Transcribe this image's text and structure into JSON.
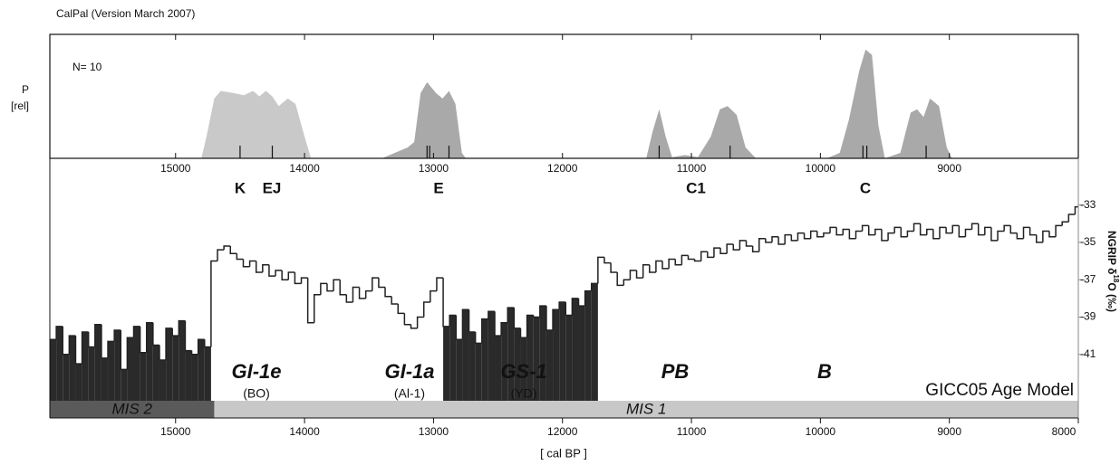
{
  "chart_data": [
    {
      "type": "area",
      "title": "CalPal (Version March 2007)",
      "n_label": "N= 10",
      "ylabel_lines": [
        "P",
        "[rel]"
      ],
      "xlim": [
        15975,
        8000
      ],
      "ylim": [
        0,
        1.14
      ],
      "xticks": [
        15000,
        14000,
        13000,
        12000,
        11000,
        10000,
        9000
      ],
      "sample_labels": [
        "K",
        "EJ",
        "E",
        "C1",
        "C"
      ],
      "sample_ticks": [
        14500,
        14250,
        13050,
        13030,
        12880,
        11250,
        10700,
        9670,
        9640,
        9180
      ],
      "series": [
        {
          "color": "#c9c9c9",
          "x": [
            14800,
            14760,
            14700,
            14650,
            14550,
            14470,
            14400,
            14350,
            14300,
            14250,
            14200,
            14130,
            14070,
            14000,
            13950
          ],
          "values": [
            0,
            0.2,
            0.55,
            0.62,
            0.6,
            0.58,
            0.62,
            0.57,
            0.62,
            0.57,
            0.48,
            0.55,
            0.5,
            0.2,
            0
          ]
        },
        {
          "color": "#a9a9a9",
          "x": [
            13400,
            13300,
            13200,
            13150,
            13100,
            13050,
            12980,
            12930,
            12880,
            12830,
            12780,
            12750,
            11350,
            11300,
            11250,
            11200,
            11150,
            11050,
            10950,
            10850,
            10780,
            10720,
            10650,
            10580,
            10500,
            9950,
            9850,
            9780,
            9700,
            9650,
            9600,
            9550,
            9500,
            9380,
            9300,
            9250,
            9200,
            9150,
            9080,
            9020,
            8980
          ],
          "values": [
            0,
            0.05,
            0.1,
            0.15,
            0.6,
            0.7,
            0.6,
            0.55,
            0.62,
            0.5,
            0.05,
            0,
            0,
            0.25,
            0.45,
            0.2,
            0.01,
            0.03,
            0.01,
            0.2,
            0.45,
            0.48,
            0.4,
            0.1,
            0,
            0,
            0.05,
            0.35,
            0.8,
            1.0,
            0.95,
            0.3,
            0,
            0.05,
            0.42,
            0.45,
            0.38,
            0.55,
            0.48,
            0.1,
            0
          ]
        }
      ]
    },
    {
      "type": "step",
      "xlabel": "[ cal BP ]",
      "y2label": {
        "pre": "NGRIP δ",
        "sup": "18",
        "post": "O (‰)"
      },
      "model_label": "GICC05 Age Model",
      "xlim": [
        15975,
        8000
      ],
      "xticks": [
        15000,
        14000,
        13000,
        12000,
        11000,
        10000,
        9000,
        8000
      ],
      "y2lim": [
        -44.4,
        -30.5
      ],
      "y2ticks": [
        -33,
        -35,
        -37,
        -39,
        -41
      ],
      "stadials": [
        [
          15975,
          14700
        ],
        [
          12900,
          11700
        ]
      ],
      "periods": [
        {
          "name": "GI-1e",
          "sub": "(BO)"
        },
        {
          "name": "GI-1a",
          "sub": "(Al-1)"
        },
        {
          "name": "GS-1",
          "sub": "(YD)"
        },
        {
          "name": "PB"
        },
        {
          "name": "B"
        }
      ],
      "mis": [
        {
          "name": "MIS 2",
          "range": [
            15975,
            14700
          ],
          "color": "#5a5a5a"
        },
        {
          "name": "MIS 1",
          "range": [
            14700,
            8000
          ],
          "color": "#c8c8c8"
        }
      ],
      "series": [
        {
          "axis": "y2",
          "color": "#222222",
          "fill": "#2a2a2a",
          "x": [
            15950,
            15900,
            15850,
            15800,
            15750,
            15700,
            15650,
            15600,
            15550,
            15500,
            15450,
            15400,
            15350,
            15300,
            15250,
            15200,
            15150,
            15100,
            15050,
            15000,
            14950,
            14900,
            14850,
            14800,
            14750,
            14700,
            14650,
            14600,
            14550,
            14500,
            14450,
            14400,
            14350,
            14300,
            14250,
            14200,
            14150,
            14100,
            14050,
            14000,
            13950,
            13900,
            13850,
            13800,
            13750,
            13700,
            13650,
            13600,
            13550,
            13500,
            13450,
            13400,
            13350,
            13300,
            13250,
            13200,
            13150,
            13100,
            13050,
            13000,
            12950,
            12900,
            12850,
            12800,
            12750,
            12700,
            12650,
            12600,
            12550,
            12500,
            12450,
            12400,
            12350,
            12300,
            12250,
            12200,
            12150,
            12100,
            12050,
            12000,
            11950,
            11900,
            11850,
            11800,
            11750,
            11700,
            11650,
            11600,
            11550,
            11500,
            11450,
            11400,
            11350,
            11300,
            11250,
            11200,
            11150,
            11100,
            11050,
            11000,
            10950,
            10900,
            10850,
            10800,
            10750,
            10700,
            10650,
            10600,
            10550,
            10500,
            10450,
            10400,
            10350,
            10300,
            10250,
            10200,
            10150,
            10100,
            10050,
            10000,
            9950,
            9900,
            9850,
            9800,
            9750,
            9700,
            9650,
            9600,
            9550,
            9500,
            9450,
            9400,
            9350,
            9300,
            9250,
            9200,
            9150,
            9100,
            9050,
            9000,
            8950,
            8900,
            8850,
            8800,
            8750,
            8700,
            8650,
            8600,
            8550,
            8500,
            8450,
            8400,
            8350,
            8300,
            8250,
            8200,
            8150,
            8100,
            8050,
            8000
          ],
          "values": [
            -40.2,
            -39.5,
            -41.0,
            -40.0,
            -41.5,
            -39.8,
            -40.6,
            -39.4,
            -41.2,
            -40.3,
            -39.7,
            -41.8,
            -40.1,
            -39.5,
            -40.9,
            -39.3,
            -40.5,
            -41.3,
            -39.6,
            -40.0,
            -39.2,
            -40.8,
            -41.0,
            -40.2,
            -40.6,
            -36.0,
            -35.4,
            -35.2,
            -35.6,
            -35.9,
            -36.3,
            -36.0,
            -36.6,
            -36.2,
            -36.8,
            -36.5,
            -37.0,
            -36.6,
            -37.2,
            -36.9,
            -39.3,
            -37.8,
            -37.2,
            -37.6,
            -37.0,
            -37.8,
            -38.2,
            -37.4,
            -38.0,
            -37.6,
            -36.9,
            -37.4,
            -37.9,
            -38.3,
            -38.8,
            -39.4,
            -39.6,
            -39.0,
            -38.2,
            -37.6,
            -36.9,
            -39.5,
            -38.9,
            -40.2,
            -38.6,
            -39.8,
            -40.4,
            -39.1,
            -38.7,
            -40.0,
            -39.3,
            -38.5,
            -39.6,
            -40.1,
            -38.9,
            -39.0,
            -38.4,
            -39.7,
            -38.6,
            -38.2,
            -38.9,
            -38.0,
            -38.4,
            -37.6,
            -37.2,
            -35.8,
            -36.1,
            -36.6,
            -37.3,
            -37.0,
            -36.5,
            -36.9,
            -36.2,
            -36.6,
            -36.0,
            -36.4,
            -35.9,
            -36.2,
            -35.7,
            -35.9,
            -36.0,
            -35.5,
            -35.8,
            -35.3,
            -35.6,
            -35.1,
            -35.4,
            -34.9,
            -35.2,
            -35.5,
            -34.8,
            -35.0,
            -34.7,
            -35.1,
            -34.6,
            -34.9,
            -34.5,
            -34.8,
            -34.4,
            -34.7,
            -34.5,
            -34.2,
            -34.6,
            -34.3,
            -34.8,
            -34.4,
            -34.1,
            -34.6,
            -34.3,
            -34.9,
            -34.5,
            -34.2,
            -34.7,
            -34.4,
            -34.0,
            -34.6,
            -34.3,
            -34.8,
            -34.2,
            -34.5,
            -34.1,
            -34.7,
            -34.3,
            -34.0,
            -34.6,
            -34.2,
            -34.9,
            -34.4,
            -34.1,
            -34.5,
            -34.8,
            -34.2,
            -34.6,
            -35.0,
            -34.4,
            -34.7,
            -34.1,
            -33.9,
            -33.5,
            -33.1
          ]
        }
      ]
    }
  ]
}
